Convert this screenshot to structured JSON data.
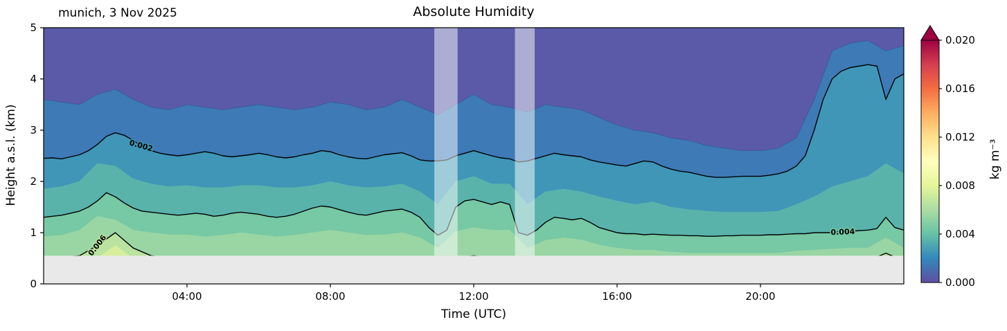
{
  "chart_data": {
    "type": "heatmap",
    "title": "Absolute Humidity",
    "annotation": "munich, 3 Nov 2025",
    "xlabel": "Time (UTC)",
    "ylabel": "Height a.s.l. (km)",
    "x_range_hours": [
      0,
      24
    ],
    "ylim": [
      0,
      5
    ],
    "x_ticks": [
      {
        "hour": 4,
        "label": "04:00"
      },
      {
        "hour": 8,
        "label": "08:00"
      },
      {
        "hour": 12,
        "label": "12:00"
      },
      {
        "hour": 16,
        "label": "16:00"
      },
      {
        "hour": 20,
        "label": "20:00"
      }
    ],
    "y_ticks": [
      0,
      1,
      2,
      3,
      4,
      5
    ],
    "grid": false,
    "surface_mask_km": 0.55,
    "mask_color": "#e9e9e9",
    "background_band_color": "#5b5aa9",
    "flag_band_color": "rgba(255,255,255,0.5)",
    "flag_bands_hours": [
      [
        10.9,
        11.55
      ],
      [
        13.15,
        13.7
      ]
    ],
    "colorbar": {
      "label": "kg m⁻³",
      "vmin": 0.0,
      "vmax": 0.02,
      "extend": "max",
      "over_color": "#9e0142",
      "ticks": [
        {
          "v": 0.0,
          "label": "0.000"
        },
        {
          "v": 0.004,
          "label": "0.004"
        },
        {
          "v": 0.008,
          "label": "0.008"
        },
        {
          "v": 0.012,
          "label": "0.012"
        },
        {
          "v": 0.016,
          "label": "0.016"
        },
        {
          "v": 0.02,
          "label": "0.020"
        }
      ],
      "cmap_stops": [
        {
          "o": 0.0,
          "c": "#5e4fa2"
        },
        {
          "o": 0.1,
          "c": "#3288bd"
        },
        {
          "o": 0.2,
          "c": "#66c2a5"
        },
        {
          "o": 0.3,
          "c": "#abdda4"
        },
        {
          "o": 0.4,
          "c": "#e6f598"
        },
        {
          "o": 0.5,
          "c": "#ffffbf"
        },
        {
          "o": 0.6,
          "c": "#fee08b"
        },
        {
          "o": 0.7,
          "c": "#fdae61"
        },
        {
          "o": 0.8,
          "c": "#f46d43"
        },
        {
          "o": 0.9,
          "c": "#d53e4f"
        },
        {
          "o": 1.0,
          "c": "#9e0142"
        }
      ]
    },
    "levels": [
      {
        "level": 0.001,
        "fill": "#3d7ab6",
        "line": "thin",
        "heights": [
          3.6,
          3.55,
          3.5,
          3.7,
          3.8,
          3.6,
          3.45,
          3.4,
          3.5,
          3.45,
          3.4,
          3.45,
          3.5,
          3.45,
          3.4,
          3.45,
          3.55,
          3.5,
          3.4,
          3.45,
          3.6,
          3.45,
          3.3,
          3.5,
          3.7,
          3.5,
          3.45,
          3.35,
          3.5,
          3.45,
          3.4,
          3.25,
          3.1,
          3.0,
          2.95,
          2.85,
          2.8,
          2.7,
          2.65,
          2.6,
          2.6,
          2.65,
          2.85,
          3.6,
          4.55,
          4.7,
          4.75,
          4.55,
          4.65
        ]
      },
      {
        "level": 0.002,
        "fill": "#3f96b7",
        "line": "bold",
        "label": {
          "text": "0.002",
          "hour": 2.7,
          "rot": 16
        },
        "heights": [
          2.45,
          2.46,
          2.44,
          2.48,
          2.52,
          2.6,
          2.72,
          2.88,
          2.95,
          2.9,
          2.8,
          2.68,
          2.6,
          2.55,
          2.52,
          2.5,
          2.52,
          2.55,
          2.58,
          2.55,
          2.5,
          2.48,
          2.5,
          2.52,
          2.55,
          2.52,
          2.48,
          2.46,
          2.48,
          2.52,
          2.55,
          2.6,
          2.58,
          2.52,
          2.48,
          2.45,
          2.44,
          2.48,
          2.52,
          2.54,
          2.56,
          2.5,
          2.42,
          2.4,
          2.4,
          2.42,
          2.5,
          2.55,
          2.6,
          2.55,
          2.5,
          2.46,
          2.44,
          2.38,
          2.4,
          2.45,
          2.5,
          2.55,
          2.52,
          2.5,
          2.48,
          2.42,
          2.38,
          2.35,
          2.32,
          2.3,
          2.35,
          2.4,
          2.38,
          2.3,
          2.24,
          2.2,
          2.18,
          2.14,
          2.1,
          2.08,
          2.08,
          2.09,
          2.1,
          2.1,
          2.1,
          2.12,
          2.15,
          2.2,
          2.3,
          2.5,
          3.0,
          3.6,
          4.0,
          4.15,
          4.22,
          4.25,
          4.28,
          4.25,
          3.6,
          4.0,
          4.1
        ]
      },
      {
        "level": 0.003,
        "fill": "#59b3ab",
        "line": "none",
        "heights": [
          1.85,
          1.9,
          2.0,
          2.35,
          2.3,
          2.05,
          1.95,
          1.9,
          1.92,
          1.88,
          1.88,
          1.92,
          1.92,
          1.88,
          1.88,
          1.92,
          2.0,
          1.92,
          1.88,
          1.9,
          1.95,
          1.8,
          1.55,
          2.0,
          2.1,
          1.95,
          1.95,
          1.55,
          1.8,
          1.85,
          1.8,
          1.7,
          1.62,
          1.55,
          1.6,
          1.5,
          1.45,
          1.42,
          1.4,
          1.4,
          1.4,
          1.42,
          1.55,
          1.7,
          1.9,
          2.0,
          2.1,
          2.35,
          2.15
        ]
      },
      {
        "level": 0.004,
        "fill": "#77c8a4",
        "line": "bold",
        "label": {
          "text": "0.004",
          "hour": 22.3,
          "rot": -2
        },
        "heights": [
          1.3,
          1.32,
          1.34,
          1.38,
          1.42,
          1.5,
          1.62,
          1.78,
          1.7,
          1.58,
          1.48,
          1.42,
          1.4,
          1.38,
          1.36,
          1.34,
          1.36,
          1.38,
          1.36,
          1.32,
          1.34,
          1.38,
          1.4,
          1.38,
          1.36,
          1.32,
          1.3,
          1.32,
          1.36,
          1.42,
          1.48,
          1.52,
          1.5,
          1.45,
          1.4,
          1.36,
          1.34,
          1.38,
          1.42,
          1.44,
          1.46,
          1.4,
          1.3,
          1.1,
          0.95,
          1.05,
          1.5,
          1.62,
          1.65,
          1.6,
          1.55,
          1.6,
          1.55,
          1.0,
          0.95,
          1.05,
          1.2,
          1.3,
          1.28,
          1.25,
          1.28,
          1.2,
          1.1,
          1.05,
          1.0,
          0.98,
          0.98,
          0.96,
          0.97,
          0.96,
          0.95,
          0.95,
          0.94,
          0.94,
          0.93,
          0.93,
          0.94,
          0.94,
          0.95,
          0.95,
          0.95,
          0.96,
          0.96,
          0.97,
          0.98,
          0.98,
          1.0,
          1.0,
          1.0,
          1.02,
          1.02,
          1.04,
          1.05,
          1.08,
          1.3,
          1.1,
          1.05
        ]
      },
      {
        "level": 0.005,
        "fill": "#99d6a4",
        "line": "none",
        "heights": [
          0.92,
          0.95,
          1.05,
          1.32,
          1.25,
          1.05,
          1.0,
          0.96,
          0.96,
          0.92,
          0.95,
          1.0,
          0.96,
          0.92,
          0.95,
          1.0,
          1.05,
          1.0,
          0.95,
          0.96,
          1.0,
          0.9,
          0.7,
          1.02,
          1.1,
          1.05,
          1.05,
          0.7,
          0.85,
          0.9,
          0.86,
          0.76,
          0.7,
          0.66,
          0.66,
          0.62,
          0.6,
          0.6,
          0.6,
          0.6,
          0.6,
          0.6,
          0.64,
          0.66,
          0.68,
          0.7,
          0.7,
          0.9,
          0.7
        ]
      },
      {
        "level": 0.006,
        "fill": "#bae3a1",
        "line": "bold",
        "label": {
          "text": "0.006",
          "hour": 1.55,
          "rot": -52
        },
        "heights": [
          0.5,
          0.52,
          0.55,
          0.75,
          1.0,
          0.7,
          0.55,
          0.5,
          0.48,
          0.45,
          0.45,
          0.5,
          0.48,
          0.45,
          0.45,
          0.5,
          0.52,
          0.5,
          0.45,
          0.45,
          0.5,
          0.42,
          0.3,
          0.5,
          0.55,
          0.5,
          0.5,
          0.3,
          0.4,
          0.42,
          0.4,
          0.35,
          0.3,
          0.3,
          0.3,
          0.3,
          0.3,
          0.3,
          0.3,
          0.3,
          0.3,
          0.3,
          0.32,
          0.35,
          0.4,
          0.45,
          0.45,
          0.6,
          0.45
        ]
      },
      {
        "level": 0.007,
        "fill": "#d7ef9b",
        "line": "none",
        "heights": [
          0.3,
          0.3,
          0.4,
          0.5,
          0.75,
          0.5,
          0.4,
          0.3,
          0.3,
          0.3,
          0.3,
          0.3,
          0.3,
          0.3,
          0.3,
          0.3,
          0.3,
          0.3,
          0.3,
          0.3,
          0.3,
          0.3,
          0.2,
          0.3,
          0.3,
          0.3,
          0.3,
          0.2,
          0.25,
          0.25,
          0.25,
          0.2,
          0.2,
          0.2,
          0.2,
          0.2,
          0.2,
          0.2,
          0.2,
          0.2,
          0.2,
          0.2,
          0.2,
          0.2,
          0.2,
          0.25,
          0.25,
          0.3,
          0.25
        ]
      }
    ]
  }
}
